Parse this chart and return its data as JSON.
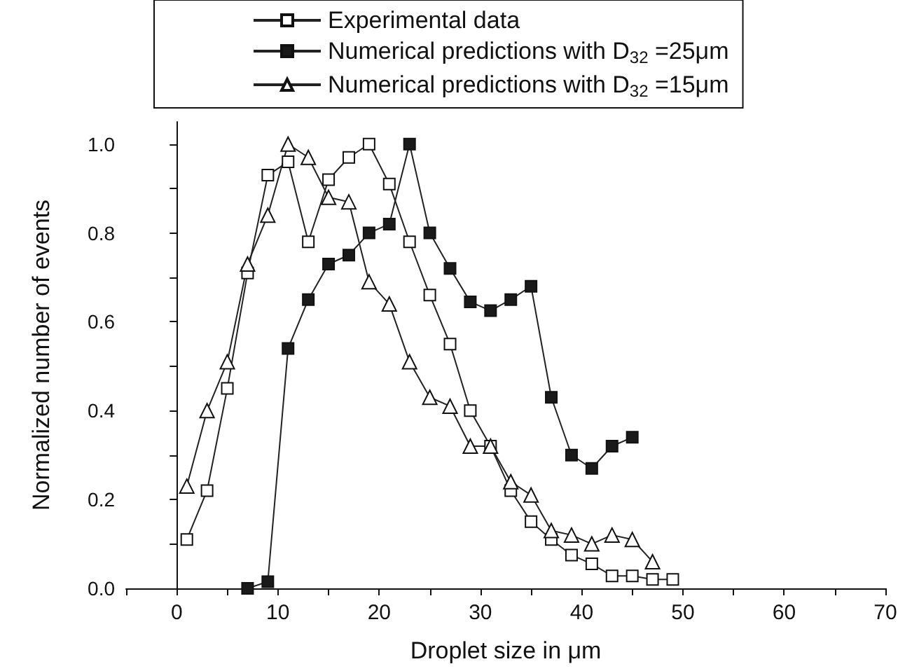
{
  "chart_data": {
    "type": "line",
    "xlabel": "Droplet size in μm",
    "ylabel": "Normalized number of events",
    "xlim": [
      -5,
      70
    ],
    "ylim": [
      0,
      1.05
    ],
    "xticks": [
      {
        "value": -5,
        "label": null
      },
      0,
      {
        "value": 5,
        "label": null
      },
      10,
      {
        "value": 15,
        "label": null
      },
      20,
      {
        "value": 25,
        "label": null
      },
      30,
      {
        "value": 35,
        "label": null
      },
      40,
      {
        "value": 45,
        "label": null
      },
      50,
      {
        "value": 55,
        "label": null
      },
      60,
      {
        "value": 65,
        "label": null
      },
      70
    ],
    "yticks": [
      {
        "value": 0,
        "label": "0.0"
      },
      {
        "value": 0.1,
        "label": null
      },
      {
        "value": 0.2,
        "label": "0.2"
      },
      {
        "value": 0.3,
        "label": null
      },
      {
        "value": 0.4,
        "label": "0.4"
      },
      {
        "value": 0.5,
        "label": null
      },
      {
        "value": 0.6,
        "label": "0.6"
      },
      {
        "value": 0.7,
        "label": null
      },
      {
        "value": 0.8,
        "label": "0.8"
      },
      {
        "value": 0.9,
        "label": null
      },
      {
        "value": 1.0,
        "label": "1.0"
      }
    ],
    "legend": "top",
    "line_style": "solid",
    "series": [
      {
        "name": "Experimental data",
        "color": "#ffffff",
        "marker": "square",
        "x": [
          1,
          3,
          5,
          7,
          9,
          11,
          13,
          15,
          17,
          19,
          21,
          23,
          25,
          27,
          29,
          31,
          33,
          35,
          37,
          39,
          41,
          43,
          45,
          47,
          49
        ],
        "values": [
          0.11,
          0.22,
          0.45,
          0.71,
          0.93,
          0.96,
          0.78,
          0.92,
          0.97,
          1.0,
          0.91,
          0.78,
          0.66,
          0.55,
          0.4,
          0.32,
          0.22,
          0.15,
          0.11,
          0.075,
          0.055,
          0.028,
          0.028,
          0.02,
          0.02
        ]
      },
      {
        "name": "Numerical predictions with D$_{32}$ =25μm",
        "color": "#1a1a1a",
        "marker": "square",
        "x": [
          7,
          9,
          11,
          13,
          15,
          17,
          19,
          21,
          23,
          25,
          27,
          29,
          31,
          33,
          35,
          37,
          39,
          41,
          43,
          45
        ],
        "values": [
          0,
          0.015,
          0.54,
          0.65,
          0.73,
          0.75,
          0.8,
          0.82,
          1.0,
          0.8,
          0.72,
          0.645,
          0.625,
          0.65,
          0.68,
          0.43,
          0.3,
          0.27,
          0.32,
          0.34
        ]
      },
      {
        "name": "Numerical predictions with D$_{32}$ =15μm",
        "color": "#ffffff",
        "marker": "triangle",
        "x": [
          1,
          3,
          5,
          7,
          9,
          11,
          13,
          15,
          17,
          19,
          21,
          23,
          25,
          27,
          29,
          31,
          33,
          35,
          37,
          39,
          41,
          43,
          45,
          47
        ],
        "values": [
          0.23,
          0.4,
          0.51,
          0.73,
          0.84,
          1.0,
          0.97,
          0.88,
          0.87,
          0.69,
          0.64,
          0.51,
          0.43,
          0.41,
          0.32,
          0.32,
          0.24,
          0.21,
          0.13,
          0.12,
          0.1,
          0.12,
          0.11,
          0.06
        ]
      }
    ]
  }
}
